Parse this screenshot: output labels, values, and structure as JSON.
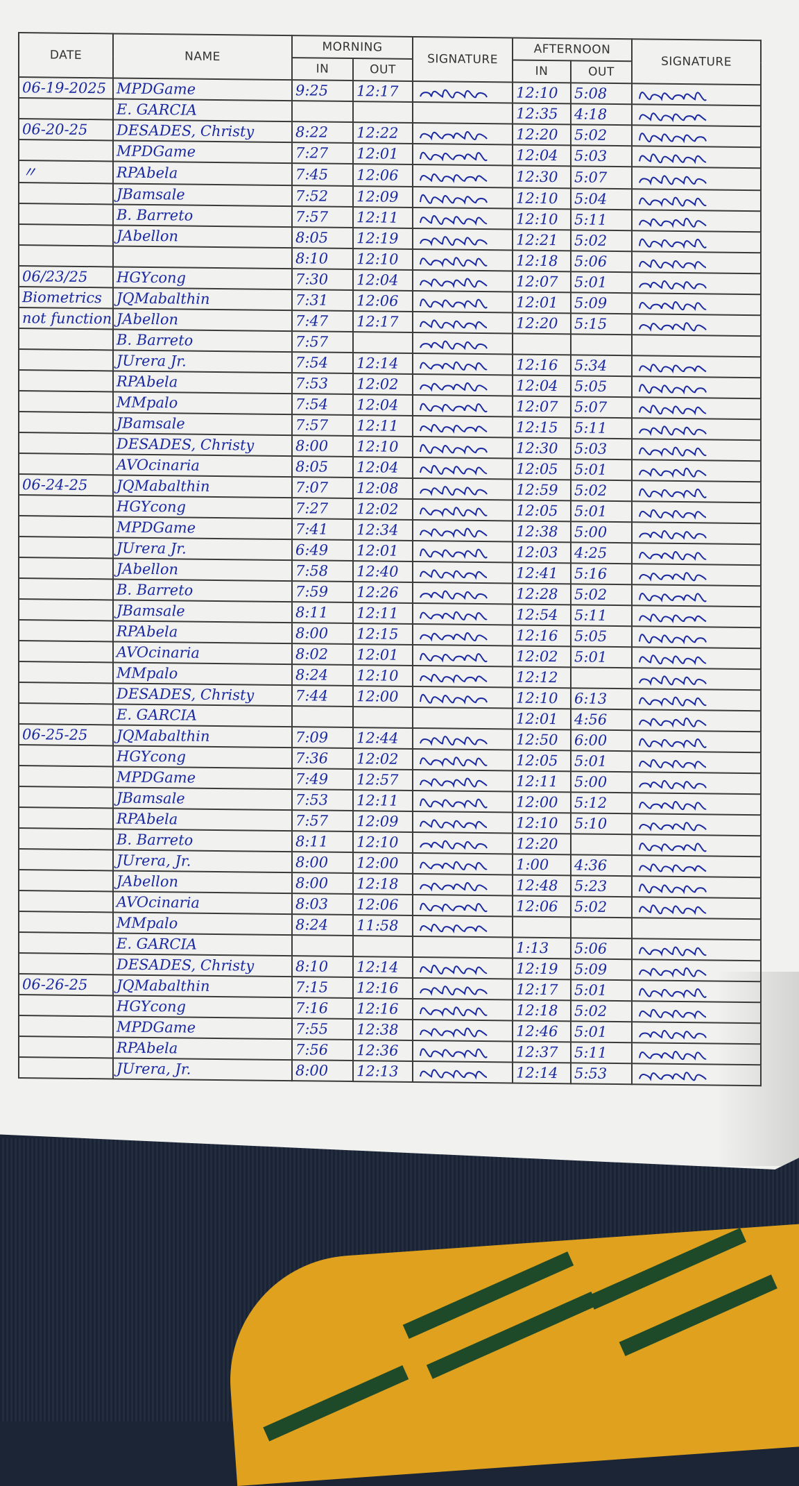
{
  "header": {
    "date": "DATE",
    "name": "NAME",
    "morning": "MORNING",
    "afternoon": "AFTERNOON",
    "in": "IN",
    "out": "OUT",
    "signature": "SIGNATURE"
  },
  "ink_color": "#1b2aa0",
  "rows": [
    {
      "date": "06-19-2025",
      "name": "MPDGame",
      "am_in": "9:25",
      "am_out": "12:17",
      "pm_in": "12:10",
      "pm_out": "5:08"
    },
    {
      "date": "",
      "name": "E. GARCIA",
      "am_in": "",
      "am_out": "",
      "pm_in": "12:35",
      "pm_out": "4:18"
    },
    {
      "date": "06-20-25",
      "name": "DESADES, Christy",
      "am_in": "8:22",
      "am_out": "12:22",
      "pm_in": "12:20",
      "pm_out": "5:02"
    },
    {
      "date": "",
      "name": "MPDGame",
      "am_in": "7:27",
      "am_out": "12:01",
      "pm_in": "12:04",
      "pm_out": "5:03"
    },
    {
      "date": "〃",
      "name": "RPAbela",
      "am_in": "7:45",
      "am_out": "12:06",
      "pm_in": "12:30",
      "pm_out": "5:07"
    },
    {
      "date": "",
      "name": "JBamsale",
      "am_in": "7:52",
      "am_out": "12:09",
      "pm_in": "12:10",
      "pm_out": "5:04"
    },
    {
      "date": "",
      "name": "B. Barreto",
      "am_in": "7:57",
      "am_out": "12:11",
      "pm_in": "12:10",
      "pm_out": "5:11"
    },
    {
      "date": "",
      "name": "JAbellon",
      "am_in": "8:05",
      "am_out": "12:19",
      "pm_in": "12:21",
      "pm_out": "5:02"
    },
    {
      "date": "",
      "name": "",
      "am_in": "8:10",
      "am_out": "12:10",
      "pm_in": "12:18",
      "pm_out": "5:06"
    },
    {
      "date": "06/23/25",
      "name": "HGYcong",
      "am_in": "7:30",
      "am_out": "12:04",
      "pm_in": "12:07",
      "pm_out": "5:01"
    },
    {
      "date": "Biometrics",
      "name": "JQMabalthin",
      "am_in": "7:31",
      "am_out": "12:06",
      "pm_in": "12:01",
      "pm_out": "5:09"
    },
    {
      "date": "not functional",
      "name": "JAbellon",
      "am_in": "7:47",
      "am_out": "12:17",
      "pm_in": "12:20",
      "pm_out": "5:15"
    },
    {
      "date": "",
      "name": "B. Barreto",
      "am_in": "7:57",
      "am_out": "",
      "pm_in": "",
      "pm_out": ""
    },
    {
      "date": "",
      "name": "JUrera Jr.",
      "am_in": "7:54",
      "am_out": "12:14",
      "pm_in": "12:16",
      "pm_out": "5:34"
    },
    {
      "date": "",
      "name": "RPAbela",
      "am_in": "7:53",
      "am_out": "12:02",
      "pm_in": "12:04",
      "pm_out": "5:05"
    },
    {
      "date": "",
      "name": "MMpalo",
      "am_in": "7:54",
      "am_out": "12:04",
      "pm_in": "12:07",
      "pm_out": "5:07"
    },
    {
      "date": "",
      "name": "JBamsale",
      "am_in": "7:57",
      "am_out": "12:11",
      "pm_in": "12:15",
      "pm_out": "5:11"
    },
    {
      "date": "",
      "name": "DESADES, Christy",
      "am_in": "8:00",
      "am_out": "12:10",
      "pm_in": "12:30",
      "pm_out": "5:03"
    },
    {
      "date": "",
      "name": "AVOcinaria",
      "am_in": "8:05",
      "am_out": "12:04",
      "pm_in": "12:05",
      "pm_out": "5:01"
    },
    {
      "date": "06-24-25",
      "name": "JQMabalthin",
      "am_in": "7:07",
      "am_out": "12:08",
      "pm_in": "12:59",
      "pm_out": "5:02"
    },
    {
      "date": "",
      "name": "HGYcong",
      "am_in": "7:27",
      "am_out": "12:02",
      "pm_in": "12:05",
      "pm_out": "5:01"
    },
    {
      "date": "",
      "name": "MPDGame",
      "am_in": "7:41",
      "am_out": "12:34",
      "pm_in": "12:38",
      "pm_out": "5:00"
    },
    {
      "date": "",
      "name": "JUrera Jr.",
      "am_in": "6:49",
      "am_out": "12:01",
      "pm_in": "12:03",
      "pm_out": "4:25"
    },
    {
      "date": "",
      "name": "JAbellon",
      "am_in": "7:58",
      "am_out": "12:40",
      "pm_in": "12:41",
      "pm_out": "5:16"
    },
    {
      "date": "",
      "name": "B. Barreto",
      "am_in": "7:59",
      "am_out": "12:26",
      "pm_in": "12:28",
      "pm_out": "5:02"
    },
    {
      "date": "",
      "name": "JBamsale",
      "am_in": "8:11",
      "am_out": "12:11",
      "pm_in": "12:54",
      "pm_out": "5:11"
    },
    {
      "date": "",
      "name": "RPAbela",
      "am_in": "8:00",
      "am_out": "12:15",
      "pm_in": "12:16",
      "pm_out": "5:05"
    },
    {
      "date": "",
      "name": "AVOcinaria",
      "am_in": "8:02",
      "am_out": "12:01",
      "pm_in": "12:02",
      "pm_out": "5:01"
    },
    {
      "date": "",
      "name": "MMpalo",
      "am_in": "8:24",
      "am_out": "12:10",
      "pm_in": "12:12",
      "pm_out": ""
    },
    {
      "date": "",
      "name": "DESADES, Christy",
      "am_in": "7:44",
      "am_out": "12:00",
      "pm_in": "12:10",
      "pm_out": "6:13"
    },
    {
      "date": "",
      "name": "E. GARCIA",
      "am_in": "",
      "am_out": "",
      "pm_in": "12:01",
      "pm_out": "4:56"
    },
    {
      "date": "06-25-25",
      "name": "JQMabalthin",
      "am_in": "7:09",
      "am_out": "12:44",
      "pm_in": "12:50",
      "pm_out": "6:00"
    },
    {
      "date": "",
      "name": "HGYcong",
      "am_in": "7:36",
      "am_out": "12:02",
      "pm_in": "12:05",
      "pm_out": "5:01"
    },
    {
      "date": "",
      "name": "MPDGame",
      "am_in": "7:49",
      "am_out": "12:57",
      "pm_in": "12:11",
      "pm_out": "5:00"
    },
    {
      "date": "",
      "name": "JBamsale",
      "am_in": "7:53",
      "am_out": "12:11",
      "pm_in": "12:00",
      "pm_out": "5:12"
    },
    {
      "date": "",
      "name": "RPAbela",
      "am_in": "7:57",
      "am_out": "12:09",
      "pm_in": "12:10",
      "pm_out": "5:10"
    },
    {
      "date": "",
      "name": "B. Barreto",
      "am_in": "8:11",
      "am_out": "12:10",
      "pm_in": "12:20",
      "pm_out": ""
    },
    {
      "date": "",
      "name": "JUrera, Jr.",
      "am_in": "8:00",
      "am_out": "12:00",
      "pm_in": "1:00",
      "pm_out": "4:36"
    },
    {
      "date": "",
      "name": "JAbellon",
      "am_in": "8:00",
      "am_out": "12:18",
      "pm_in": "12:48",
      "pm_out": "5:23"
    },
    {
      "date": "",
      "name": "AVOcinaria",
      "am_in": "8:03",
      "am_out": "12:06",
      "pm_in": "12:06",
      "pm_out": "5:02"
    },
    {
      "date": "",
      "name": "MMpalo",
      "am_in": "8:24",
      "am_out": "11:58",
      "pm_in": "",
      "pm_out": ""
    },
    {
      "date": "",
      "name": "E. GARCIA",
      "am_in": "",
      "am_out": "",
      "pm_in": "1:13",
      "pm_out": "5:06"
    },
    {
      "date": "",
      "name": "DESADES, Christy",
      "am_in": "8:10",
      "am_out": "12:14",
      "pm_in": "12:19",
      "pm_out": "5:09"
    },
    {
      "date": "06-26-25",
      "name": "JQMabalthin",
      "am_in": "7:15",
      "am_out": "12:16",
      "pm_in": "12:17",
      "pm_out": "5:01"
    },
    {
      "date": "",
      "name": "HGYcong",
      "am_in": "7:16",
      "am_out": "12:16",
      "pm_in": "12:18",
      "pm_out": "5:02"
    },
    {
      "date": "",
      "name": "MPDGame",
      "am_in": "7:55",
      "am_out": "12:38",
      "pm_in": "12:46",
      "pm_out": "5:01"
    },
    {
      "date": "",
      "name": "RPAbela",
      "am_in": "7:56",
      "am_out": "12:36",
      "pm_in": "12:37",
      "pm_out": "5:11"
    },
    {
      "date": "",
      "name": "JUrera, Jr.",
      "am_in": "8:00",
      "am_out": "12:13",
      "pm_in": "12:14",
      "pm_out": "5:53"
    }
  ]
}
